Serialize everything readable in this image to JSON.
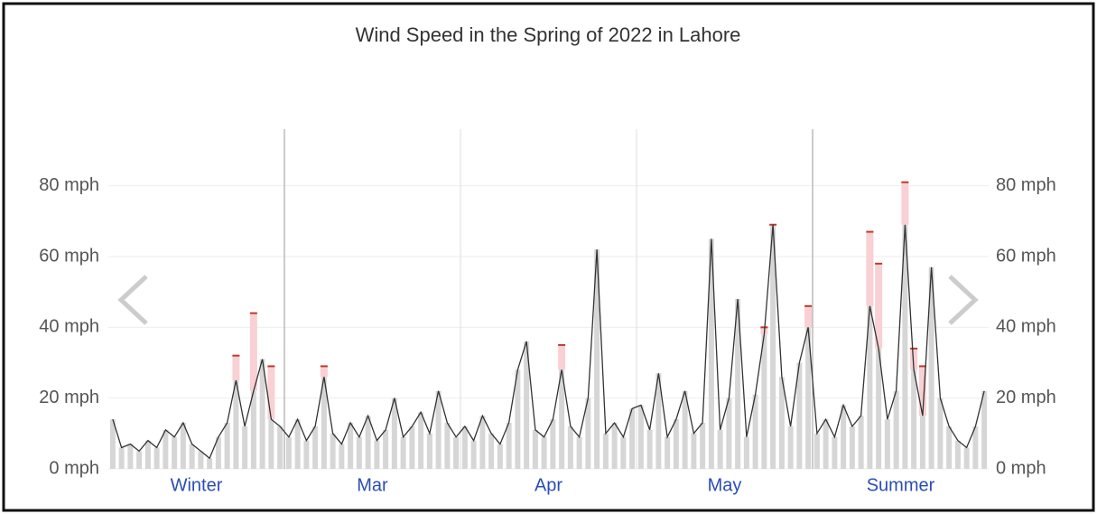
{
  "chart_data": {
    "type": "line",
    "title": "Wind Speed in the Spring of 2022 in Lahore",
    "ylim": [
      0,
      96
    ],
    "yticks": [
      {
        "value": 0,
        "label": "0 mph"
      },
      {
        "value": 20,
        "label": "20 mph"
      },
      {
        "value": 40,
        "label": "40 mph"
      },
      {
        "value": 60,
        "label": "60 mph"
      },
      {
        "value": 80,
        "label": "80 mph"
      }
    ],
    "grid": true,
    "color": "#333333",
    "gust_color": "#c0392b",
    "segments": [
      {
        "name": "Winter",
        "values": [
          14,
          6,
          7,
          5,
          8,
          6,
          11,
          9,
          13,
          7,
          5,
          3,
          9,
          13,
          25,
          12,
          22,
          31,
          14,
          12
        ],
        "gusts": [
          null,
          null,
          null,
          null,
          null,
          null,
          null,
          null,
          null,
          null,
          null,
          null,
          null,
          null,
          32,
          null,
          44,
          null,
          29,
          null
        ]
      },
      {
        "name": "Mar",
        "values": [
          9,
          14,
          8,
          12,
          26,
          10,
          7,
          13,
          9,
          15,
          8,
          11,
          20,
          9,
          12,
          16,
          10,
          22,
          13,
          9
        ],
        "gusts": [
          null,
          null,
          null,
          null,
          29,
          null,
          null,
          null,
          null,
          null,
          null,
          null,
          null,
          null,
          null,
          null,
          null,
          null,
          null,
          null
        ]
      },
      {
        "name": "Apr",
        "values": [
          12,
          8,
          15,
          10,
          7,
          13,
          28,
          36,
          11,
          9,
          14,
          28,
          12,
          9,
          20,
          62,
          10,
          13,
          9,
          17
        ],
        "gusts": [
          null,
          null,
          null,
          null,
          null,
          null,
          null,
          null,
          null,
          null,
          null,
          35,
          null,
          null,
          null,
          null,
          null,
          null,
          null,
          null
        ]
      },
      {
        "name": "May",
        "values": [
          18,
          11,
          27,
          9,
          14,
          22,
          10,
          13,
          65,
          11,
          20,
          48,
          9,
          21,
          38,
          69,
          26,
          12,
          30,
          40
        ],
        "gusts": [
          null,
          null,
          null,
          null,
          null,
          null,
          null,
          null,
          null,
          null,
          null,
          null,
          null,
          null,
          40,
          69,
          null,
          null,
          null,
          46
        ]
      },
      {
        "name": "Summer",
        "values": [
          10,
          14,
          9,
          18,
          12,
          15,
          46,
          34,
          14,
          22,
          69,
          28,
          15,
          57,
          20,
          12,
          8,
          6,
          12,
          22
        ],
        "gusts": [
          null,
          null,
          null,
          null,
          null,
          null,
          67,
          58,
          null,
          null,
          81,
          34,
          29,
          null,
          null,
          null,
          null,
          null,
          null,
          null
        ]
      }
    ]
  }
}
